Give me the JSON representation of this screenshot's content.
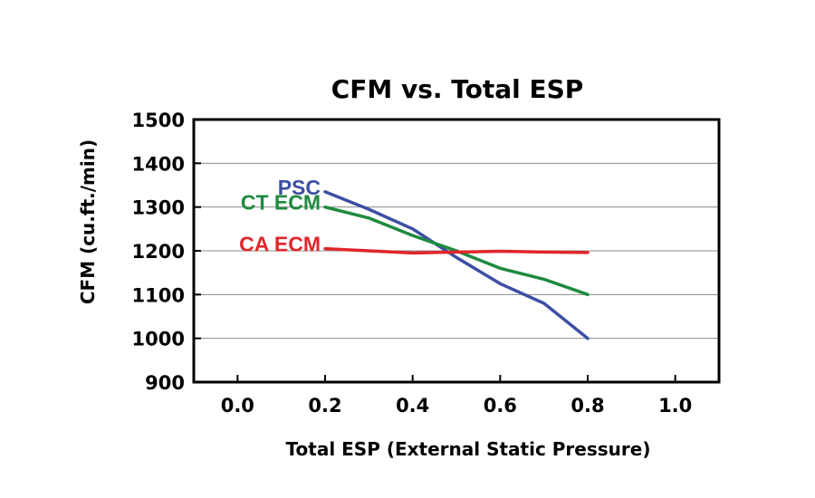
{
  "chart_data": {
    "type": "line",
    "title": "CFM vs. Total ESP",
    "xlabel": "Total ESP (External Static Pressure)",
    "ylabel": "CFM (cu.ft./min)",
    "xlim": [
      -0.1,
      1.1
    ],
    "ylim": [
      900,
      1500
    ],
    "xticks": [
      "0.0",
      "0.2",
      "0.4",
      "0.6",
      "0.8",
      "1.0"
    ],
    "xtick_values": [
      0.0,
      0.2,
      0.4,
      0.6,
      0.8,
      1.0
    ],
    "yticks": [
      "900",
      "1000",
      "1100",
      "1200",
      "1300",
      "1400",
      "1500"
    ],
    "ytick_values": [
      900,
      1000,
      1100,
      1200,
      1300,
      1400,
      1500
    ],
    "grid": "horizontal",
    "series": [
      {
        "name": "PSC",
        "color": "#3d4fa3",
        "x": [
          0.2,
          0.3,
          0.4,
          0.5,
          0.6,
          0.7,
          0.8
        ],
        "y": [
          1335,
          1295,
          1250,
          1185,
          1125,
          1080,
          1000
        ]
      },
      {
        "name": "CT ECM",
        "color": "#1e8a3f",
        "x": [
          0.2,
          0.3,
          0.4,
          0.5,
          0.6,
          0.7,
          0.8
        ],
        "y": [
          1300,
          1275,
          1235,
          1200,
          1160,
          1135,
          1100
        ]
      },
      {
        "name": "CA ECM",
        "color": "#e0262b",
        "x": [
          0.2,
          0.3,
          0.4,
          0.5,
          0.6,
          0.7,
          0.8
        ],
        "y": [
          1205,
          1200,
          1195,
          1197,
          1199,
          1197,
          1196
        ]
      }
    ]
  }
}
